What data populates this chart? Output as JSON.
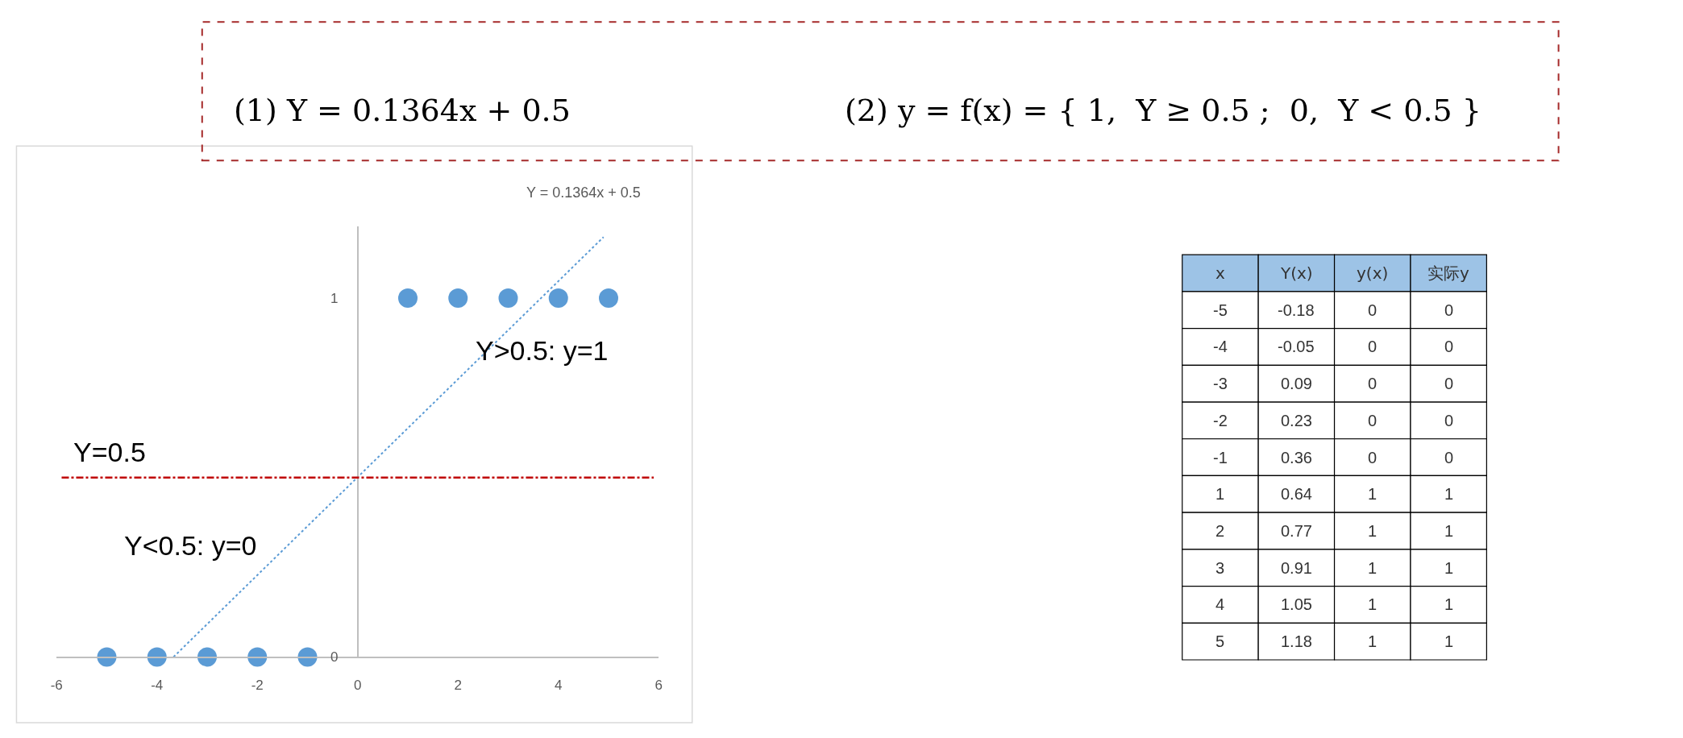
{
  "chart_data": [
    {
      "type": "scatter",
      "series": [
        {
          "type": "scatter",
          "marker": "circle",
          "color": "#5b9bd5",
          "x": [
            -5,
            -4,
            -3,
            -2,
            -1,
            1,
            2,
            3,
            4,
            5
          ],
          "values": [
            0,
            0,
            0,
            0,
            0,
            1,
            1,
            1,
            1,
            1
          ]
        },
        {
          "type": "line",
          "color": "#5b9bd5",
          "line_style": "dotted",
          "x": [
            -3.67,
            4.9
          ],
          "values": [
            0,
            1.17
          ]
        }
      ],
      "xlim": [
        -6,
        6
      ],
      "xticks": [
        -6,
        -4,
        -2,
        0,
        2,
        4,
        6
      ],
      "ylim": [
        0,
        1.2
      ],
      "yticks": [
        0,
        1
      ],
      "legend": false,
      "ref_lines": [
        {
          "axis": "y",
          "value": 0.5,
          "label": "Y=0.5",
          "color": "#c00000",
          "line_style": "dashdot"
        }
      ],
      "annotations": [
        "(1) Y = 0.1364x + 0.5",
        "(2) y = f(x) = { 1,  Y ≥ 0.5 ;  0,  Y < 0.5 }",
        "Y = 0.1364x + 0.5",
        "Y>0.5: y=1",
        "Y<0.5: y=0"
      ]
    },
    {
      "type": "other",
      "categories": [
        "x",
        "Y(x)",
        "y(x)",
        "实际y"
      ],
      "annotations": [
        "-5",
        "-0.18",
        "0",
        "0",
        "-4",
        "-0.05",
        "0",
        "0",
        "-3",
        "0.09",
        "0",
        "0",
        "-2",
        "0.23",
        "0",
        "0",
        "-1",
        "0.36",
        "0",
        "0",
        "1",
        "0.64",
        "1",
        "1",
        "2",
        "0.77",
        "1",
        "1",
        "3",
        "0.91",
        "1",
        "1",
        "4",
        "1.05",
        "1",
        "1",
        "5",
        "1.18",
        "1",
        "1"
      ],
      "color": "#9dc3e6"
    }
  ]
}
